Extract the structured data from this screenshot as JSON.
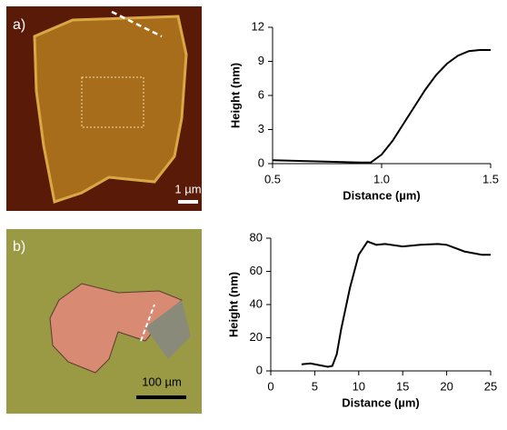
{
  "panels": [
    {
      "label": "a)",
      "scale_bar": "1 µm"
    },
    {
      "label": "b)",
      "scale_bar": "100 µm"
    }
  ],
  "chart_data": [
    {
      "type": "line",
      "ylabel": "Height (nm)",
      "xlabel": "Distance (µm)",
      "x": [
        0.5,
        0.6,
        0.7,
        0.8,
        0.9,
        0.95,
        1.0,
        1.05,
        1.1,
        1.15,
        1.2,
        1.25,
        1.3,
        1.35,
        1.4,
        1.45,
        1.5
      ],
      "series": [
        {
          "color": "#000000",
          "values": [
            0.3,
            0.25,
            0.2,
            0.15,
            0.1,
            0.1,
            0.8,
            2,
            3.5,
            5,
            6.5,
            7.8,
            8.8,
            9.5,
            9.9,
            10,
            10
          ]
        }
      ],
      "xlim": [
        0.5,
        1.5
      ],
      "xticks": [
        0.5,
        {
          "value": 1,
          "label": "1.0"
        },
        1.5
      ],
      "ylim": [
        0,
        12
      ],
      "yticks": [
        0,
        3,
        6,
        9,
        12
      ]
    },
    {
      "type": "line",
      "ylabel": "Height (nm)",
      "xlabel": "Distance (µm)",
      "x": [
        3.5,
        4.5,
        5.5,
        6.5,
        7,
        7.5,
        8,
        9,
        10,
        11,
        12,
        13,
        15,
        17,
        19,
        20,
        22,
        24,
        25
      ],
      "series": [
        {
          "color": "#000000",
          "values": [
            4,
            4.5,
            3.5,
            2.5,
            3,
            10,
            25,
            50,
            70,
            78,
            76,
            76.5,
            75,
            76,
            76.5,
            76,
            72,
            70,
            70
          ]
        }
      ],
      "xlim": [
        0,
        25
      ],
      "xticks": [
        0,
        5,
        10,
        15,
        20,
        25
      ],
      "ylim": [
        0,
        80
      ],
      "yticks": [
        0,
        20,
        40,
        60,
        80
      ]
    }
  ]
}
